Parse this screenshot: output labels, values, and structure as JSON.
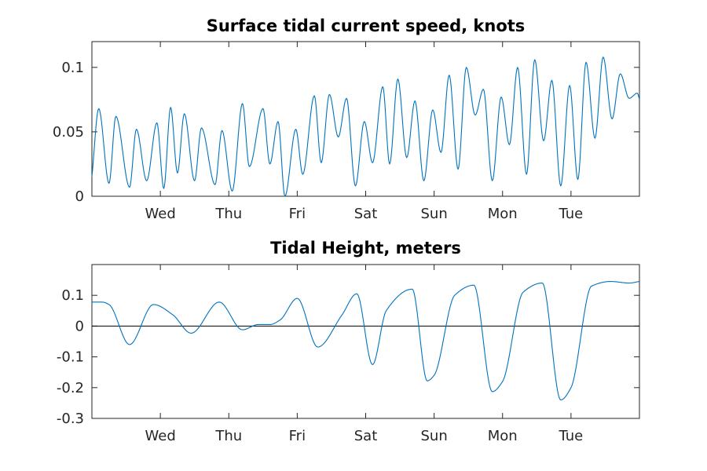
{
  "colors": {
    "series": "#0072bd",
    "axes": "#262626",
    "zero_line": "#000000"
  },
  "chart_data": [
    {
      "type": "line",
      "title": "Surface tidal current speed, knots",
      "xlabel": "",
      "ylabel": "",
      "xlim_days": [
        0,
        8
      ],
      "x_ticks": [
        {
          "label": "Wed",
          "day": 1
        },
        {
          "label": "Thu",
          "day": 2
        },
        {
          "label": "Fri",
          "day": 3
        },
        {
          "label": "Sat",
          "day": 4
        },
        {
          "label": "Sun",
          "day": 5
        },
        {
          "label": "Mon",
          "day": 6
        },
        {
          "label": "Tue",
          "day": 7
        }
      ],
      "ylim": [
        0,
        0.12
      ],
      "y_ticks": [
        {
          "label": "0",
          "value": 0
        },
        {
          "label": "0.05",
          "value": 0.05
        },
        {
          "label": "0.1",
          "value": 0.1
        }
      ],
      "grid": false,
      "zero_line": false,
      "series": [
        {
          "x": [
            0.0,
            0.1,
            0.25,
            0.35,
            0.55,
            0.65,
            0.8,
            0.95,
            1.05,
            1.15,
            1.25,
            1.35,
            1.5,
            1.6,
            1.8,
            1.9,
            2.05,
            2.2,
            2.3,
            2.5,
            2.6,
            2.72,
            2.82,
            2.98,
            3.08,
            3.25,
            3.35,
            3.47,
            3.6,
            3.72,
            3.85,
            3.98,
            4.1,
            4.25,
            4.35,
            4.47,
            4.6,
            4.72,
            4.85,
            4.98,
            5.1,
            5.22,
            5.35,
            5.47,
            5.6,
            5.72,
            5.85,
            5.98,
            6.1,
            6.22,
            6.35,
            6.47,
            6.6,
            6.72,
            6.85,
            6.98,
            7.1,
            7.22,
            7.35,
            7.47,
            7.6,
            7.72,
            7.85,
            7.97,
            8.0
          ],
          "y": [
            0.015,
            0.068,
            0.01,
            0.062,
            0.007,
            0.052,
            0.012,
            0.057,
            0.006,
            0.069,
            0.018,
            0.064,
            0.012,
            0.053,
            0.009,
            0.051,
            0.004,
            0.072,
            0.023,
            0.068,
            0.025,
            0.058,
            0.0,
            0.052,
            0.017,
            0.078,
            0.026,
            0.079,
            0.046,
            0.076,
            0.008,
            0.058,
            0.026,
            0.085,
            0.025,
            0.091,
            0.03,
            0.074,
            0.012,
            0.067,
            0.034,
            0.094,
            0.021,
            0.1,
            0.063,
            0.083,
            0.012,
            0.077,
            0.04,
            0.1,
            0.017,
            0.106,
            0.043,
            0.09,
            0.008,
            0.086,
            0.013,
            0.104,
            0.045,
            0.108,
            0.06,
            0.095,
            0.076,
            0.08,
            0.075
          ]
        }
      ]
    },
    {
      "type": "line",
      "title": "Tidal Height, meters",
      "xlabel": "",
      "ylabel": "",
      "xlim_days": [
        0,
        8
      ],
      "x_ticks": [
        {
          "label": "Wed",
          "day": 1
        },
        {
          "label": "Thu",
          "day": 2
        },
        {
          "label": "Fri",
          "day": 3
        },
        {
          "label": "Sat",
          "day": 4
        },
        {
          "label": "Sun",
          "day": 5
        },
        {
          "label": "Mon",
          "day": 6
        },
        {
          "label": "Tue",
          "day": 7
        }
      ],
      "ylim": [
        -0.3,
        0.2
      ],
      "y_ticks": [
        {
          "label": "-0.3",
          "value": -0.3
        },
        {
          "label": "-0.2",
          "value": -0.2
        },
        {
          "label": "-0.1",
          "value": -0.1
        },
        {
          "label": "0",
          "value": 0
        },
        {
          "label": "0.1",
          "value": 0.1
        }
      ],
      "grid": false,
      "zero_line": true,
      "series": [
        {
          "x": [
            0.0,
            0.15,
            0.25,
            0.55,
            0.9,
            1.18,
            1.45,
            1.86,
            2.2,
            2.43,
            2.6,
            2.75,
            3.0,
            3.3,
            3.65,
            3.87,
            4.1,
            4.3,
            4.68,
            4.9,
            5.0,
            5.3,
            5.58,
            5.85,
            6.0,
            6.3,
            6.58,
            6.85,
            7.0,
            7.3,
            7.58,
            7.85,
            8.0
          ],
          "y": [
            0.078,
            0.078,
            0.07,
            -0.06,
            0.07,
            0.037,
            -0.023,
            0.078,
            -0.012,
            0.005,
            0.005,
            0.02,
            0.09,
            -0.068,
            0.035,
            0.105,
            -0.125,
            0.05,
            0.12,
            -0.178,
            -0.16,
            0.1,
            0.133,
            -0.213,
            -0.18,
            0.11,
            0.14,
            -0.24,
            -0.2,
            0.13,
            0.145,
            0.14,
            0.145
          ]
        }
      ]
    }
  ]
}
